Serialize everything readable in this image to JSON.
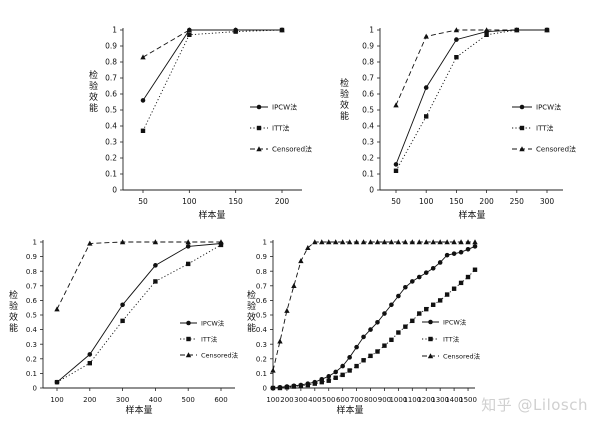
{
  "watermark": "知乎 @Lilosch",
  "chart_data": [
    {
      "type": "line",
      "ylabel": "检验效能",
      "xlabel": "样本量",
      "categories": [
        "50",
        "100",
        "150",
        "200"
      ],
      "ylim": [
        0,
        1
      ],
      "yticks": [
        "0",
        "0.1",
        "0.2",
        "0.3",
        "0.4",
        "0.5",
        "0.6",
        "0.7",
        "0.8",
        "0.9",
        "1"
      ],
      "series": [
        {
          "name": "IPCW法",
          "marker": "circle",
          "dash": "solid",
          "values": [
            0.56,
            1.0,
            1.0,
            1.0
          ]
        },
        {
          "name": "ITT法",
          "marker": "square",
          "dash": "dot",
          "values": [
            0.37,
            0.97,
            0.99,
            1.0
          ]
        },
        {
          "name": "Censored法",
          "marker": "triangle",
          "dash": "dash",
          "values": [
            0.83,
            1.0,
            1.0,
            1.0
          ]
        }
      ],
      "legend": "right"
    },
    {
      "type": "line",
      "ylabel": "检验效能",
      "xlabel": "样本量",
      "categories": [
        "50",
        "100",
        "150",
        "200",
        "250",
        "300"
      ],
      "ylim": [
        0,
        1
      ],
      "yticks": [
        "0",
        "0.1",
        "0.2",
        "0.3",
        "0.4",
        "0.5",
        "0.6",
        "0.7",
        "0.8",
        "0.9",
        "1"
      ],
      "series": [
        {
          "name": "IPCW法",
          "marker": "circle",
          "dash": "solid",
          "values": [
            0.16,
            0.64,
            0.94,
            0.99,
            1.0,
            1.0
          ]
        },
        {
          "name": "ITT法",
          "marker": "square",
          "dash": "dot",
          "values": [
            0.12,
            0.46,
            0.83,
            0.97,
            1.0,
            1.0
          ]
        },
        {
          "name": "Censored法",
          "marker": "triangle",
          "dash": "dash",
          "values": [
            0.53,
            0.96,
            1.0,
            1.0,
            1.0,
            1.0
          ]
        }
      ],
      "legend": "right"
    },
    {
      "type": "line",
      "ylabel": "检验效能",
      "xlabel": "样本量",
      "categories": [
        "100",
        "200",
        "300",
        "400",
        "500",
        "600"
      ],
      "ylim": [
        0,
        1
      ],
      "yticks": [
        "0",
        "0.1",
        "0.2",
        "0.3",
        "0.4",
        "0.5",
        "0.6",
        "0.7",
        "0.8",
        "0.9",
        "1"
      ],
      "series": [
        {
          "name": "IPCW法",
          "marker": "circle",
          "dash": "solid",
          "values": [
            0.04,
            0.23,
            0.57,
            0.84,
            0.97,
            0.99
          ]
        },
        {
          "name": "ITT法",
          "marker": "square",
          "dash": "dot",
          "values": [
            0.04,
            0.17,
            0.46,
            0.73,
            0.85,
            0.98
          ]
        },
        {
          "name": "Censored法",
          "marker": "triangle",
          "dash": "dash",
          "values": [
            0.54,
            0.99,
            1.0,
            1.0,
            1.0,
            1.0
          ]
        }
      ],
      "legend": "right"
    },
    {
      "type": "line",
      "ylabel": "检验效能",
      "xlabel": "样本量",
      "categories": [
        "100",
        "200",
        "300",
        "400",
        "500",
        "600",
        "700",
        "800",
        "900",
        "1000",
        "1100",
        "1200",
        "1300",
        "1400",
        "1500"
      ],
      "x": [
        100,
        150,
        200,
        250,
        300,
        350,
        400,
        450,
        500,
        550,
        600,
        650,
        700,
        750,
        800,
        850,
        900,
        950,
        1000,
        1050,
        1100,
        1150,
        1200,
        1250,
        1300,
        1350,
        1400,
        1450,
        1500,
        1550
      ],
      "xlim": [
        100,
        1550
      ],
      "ylim": [
        0,
        1
      ],
      "yticks": [
        "0",
        "0.1",
        "0.2",
        "0.3",
        "0.4",
        "0.5",
        "0.6",
        "0.7",
        "0.8",
        "0.9",
        "1"
      ],
      "series": [
        {
          "name": "IPCW法",
          "marker": "circle",
          "dash": "solid",
          "values": [
            0.0,
            0.005,
            0.01,
            0.015,
            0.02,
            0.03,
            0.04,
            0.06,
            0.08,
            0.11,
            0.15,
            0.21,
            0.28,
            0.35,
            0.4,
            0.45,
            0.51,
            0.57,
            0.63,
            0.69,
            0.73,
            0.76,
            0.79,
            0.82,
            0.86,
            0.91,
            0.92,
            0.93,
            0.95,
            0.97
          ]
        },
        {
          "name": "ITT法",
          "marker": "square",
          "dash": "dot",
          "values": [
            0.0,
            0.0,
            0.005,
            0.01,
            0.015,
            0.02,
            0.03,
            0.04,
            0.05,
            0.07,
            0.09,
            0.12,
            0.15,
            0.19,
            0.22,
            0.25,
            0.29,
            0.33,
            0.38,
            0.42,
            0.46,
            0.51,
            0.54,
            0.57,
            0.6,
            0.64,
            0.68,
            0.72,
            0.76,
            0.81
          ]
        },
        {
          "name": "Censored法",
          "marker": "triangle",
          "dash": "dash",
          "values": [
            0.12,
            0.32,
            0.53,
            0.7,
            0.87,
            0.96,
            1.0,
            1.0,
            1.0,
            1.0,
            1.0,
            1.0,
            1.0,
            1.0,
            1.0,
            1.0,
            1.0,
            1.0,
            1.0,
            1.0,
            1.0,
            1.0,
            1.0,
            1.0,
            1.0,
            1.0,
            1.0,
            1.0,
            1.0,
            1.0
          ]
        }
      ],
      "legend": "right"
    }
  ]
}
